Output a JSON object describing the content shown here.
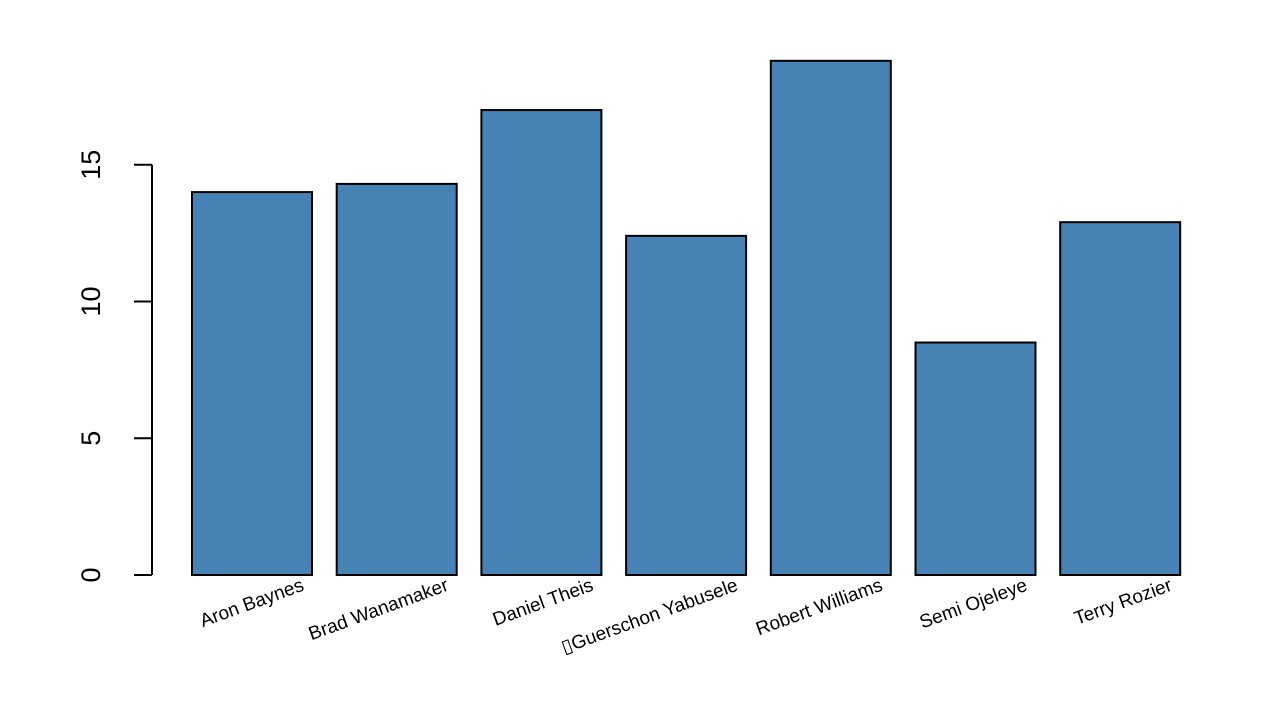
{
  "chart_data": {
    "type": "bar",
    "title": "",
    "xlabel": "",
    "ylabel": "",
    "categories": [
      "Aron Baynes",
      "Brad Wanamaker",
      "Daniel Theis",
      "▯Guerschon Yabusele",
      "Robert Williams",
      "Semi Ojeleye",
      "Terry Rozier"
    ],
    "values": [
      14.0,
      14.3,
      17.0,
      12.4,
      18.8,
      8.5,
      12.9
    ],
    "ylim": [
      0,
      18.8
    ],
    "yticks": [
      0,
      5,
      10,
      15
    ],
    "ytick_labels": [
      "0",
      "5",
      "10",
      "15"
    ],
    "grid": false,
    "legend": "none",
    "bar_color": "#4682B4"
  }
}
